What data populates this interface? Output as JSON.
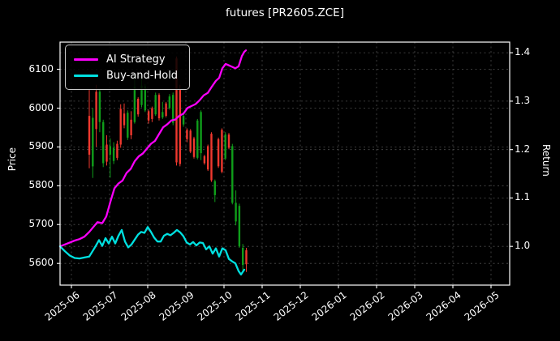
{
  "title": "futures [PR2605.ZCE]",
  "legend": {
    "items": [
      {
        "label": "AI Strategy",
        "color": "#fb00fb"
      },
      {
        "label": "Buy-and-Hold",
        "color": "#00e0e0"
      }
    ]
  },
  "axes": {
    "x": {
      "tick_labels": [
        "2025-06",
        "2025-07",
        "2025-08",
        "2025-09",
        "2025-10",
        "2025-11",
        "2025-12",
        "2026-01",
        "2026-02",
        "2026-03",
        "2026-04",
        "2026-05"
      ],
      "range_months": [
        -0.298,
        11.489
      ]
    },
    "left": {
      "label": "Price",
      "ticks": [
        5600,
        5700,
        5800,
        5900,
        6000,
        6100
      ],
      "range": [
        5544,
        6170
      ]
    },
    "right": {
      "label": "Return",
      "ticks": [
        "1.0",
        "1.1",
        "1.2",
        "1.3",
        "1.4"
      ],
      "range": [
        0.92,
        1.422
      ]
    }
  },
  "colors": {
    "background": "#000000",
    "text": "#ffffff",
    "grid": "#4d4d4d",
    "spine": "#ffffff",
    "candle_up": "#ef382e",
    "candle_down": "#0f9e1a",
    "ai_strategy": "#fb00fb",
    "buy_and_hold": "#00e0e0"
  },
  "chart_data": {
    "type": "candlestick+line",
    "x_unit": "months since 2025-06-01",
    "candles": [
      [
        0.468,
        5880,
        6050,
        5845,
        5980
      ],
      [
        0.56,
        5975,
        6000,
        5820,
        5850
      ],
      [
        0.651,
        5946,
        6060,
        5900,
        6042
      ],
      [
        0.743,
        6042,
        6050,
        5938,
        5964
      ],
      [
        0.834,
        5964,
        5970,
        5848,
        5858
      ],
      [
        0.926,
        5862,
        5930,
        5852,
        5906
      ],
      [
        1.017,
        5902,
        5922,
        5821,
        5880
      ],
      [
        1.109,
        5898,
        5912,
        5856,
        5864
      ],
      [
        1.2,
        5872,
        5916,
        5866,
        5908
      ],
      [
        1.291,
        5906,
        6010,
        5898,
        5998
      ],
      [
        1.383,
        5956,
        6012,
        5948,
        5986
      ],
      [
        1.474,
        5988,
        5994,
        5918,
        5924
      ],
      [
        1.566,
        5930,
        5992,
        5920,
        5970
      ],
      [
        1.657,
        6055,
        6090,
        5960,
        5964
      ],
      [
        1.749,
        5984,
        6028,
        5978,
        6024
      ],
      [
        1.84,
        6058,
        6085,
        6002,
        6008
      ],
      [
        1.932,
        6056,
        6062,
        5990,
        5994
      ],
      [
        2.023,
        5968,
        5996,
        5960,
        5992
      ],
      [
        2.115,
        5972,
        6004,
        5964,
        6000
      ],
      [
        2.206,
        6034,
        6040,
        5980,
        5984
      ],
      [
        2.298,
        5974,
        6038,
        5968,
        6034
      ],
      [
        2.389,
        5990,
        6016,
        5972,
        5976
      ],
      [
        2.481,
        5980,
        6016,
        5976,
        6012
      ],
      [
        2.572,
        6030,
        6036,
        5996,
        6000
      ],
      [
        2.664,
        6034,
        6040,
        5956,
        5962
      ],
      [
        2.755,
        5860,
        6133,
        5852,
        6128
      ],
      [
        2.847,
        5856,
        6060,
        5850,
        6048
      ],
      [
        2.938,
        5980,
        5990,
        5952,
        5958
      ],
      [
        3.03,
        5920,
        5948,
        5912,
        5944
      ],
      [
        3.121,
        5888,
        5946,
        5884,
        5942
      ],
      [
        3.213,
        5874,
        5926,
        5870,
        5922
      ],
      [
        3.304,
        5968,
        5972,
        5868,
        5872
      ],
      [
        3.396,
        5990,
        5994,
        5866,
        5884
      ],
      [
        3.487,
        5858,
        5880,
        5854,
        5876
      ],
      [
        3.579,
        5842,
        5906,
        5838,
        5902
      ],
      [
        3.67,
        5814,
        5938,
        5810,
        5934
      ],
      [
        3.762,
        5812,
        5816,
        5758,
        5776
      ],
      [
        3.853,
        5850,
        5924,
        5846,
        5920
      ],
      [
        3.945,
        5836,
        5948,
        5832,
        5944
      ],
      [
        4.036,
        5932,
        5938,
        5866,
        5870
      ],
      [
        4.128,
        5898,
        5936,
        5894,
        5932
      ],
      [
        4.219,
        5902,
        5908,
        5752,
        5756
      ],
      [
        4.311,
        5756,
        5788,
        5698,
        5708
      ],
      [
        4.402,
        5748,
        5754,
        5640,
        5644
      ],
      [
        4.494,
        5640,
        5650,
        5582,
        5596
      ],
      [
        4.585,
        5598,
        5640,
        5578,
        5634
      ]
    ],
    "series": [
      {
        "name": "AI Strategy",
        "axis": "right",
        "points": [
          [
            -0.298,
            1.0
          ],
          [
            -0.17,
            1.004
          ],
          [
            -0.043,
            1.008
          ],
          [
            0.085,
            1.012
          ],
          [
            0.213,
            1.015
          ],
          [
            0.34,
            1.02
          ],
          [
            0.468,
            1.03
          ],
          [
            0.574,
            1.04
          ],
          [
            0.681,
            1.05
          ],
          [
            0.809,
            1.048
          ],
          [
            0.915,
            1.062
          ],
          [
            1.021,
            1.092
          ],
          [
            1.128,
            1.12
          ],
          [
            1.234,
            1.13
          ],
          [
            1.34,
            1.136
          ],
          [
            1.447,
            1.152
          ],
          [
            1.553,
            1.16
          ],
          [
            1.66,
            1.176
          ],
          [
            1.766,
            1.186
          ],
          [
            1.872,
            1.192
          ],
          [
            1.979,
            1.202
          ],
          [
            2.085,
            1.212
          ],
          [
            2.191,
            1.218
          ],
          [
            2.298,
            1.232
          ],
          [
            2.404,
            1.246
          ],
          [
            2.511,
            1.252
          ],
          [
            2.617,
            1.26
          ],
          [
            2.723,
            1.262
          ],
          [
            2.83,
            1.27
          ],
          [
            2.936,
            1.274
          ],
          [
            3.043,
            1.286
          ],
          [
            3.149,
            1.29
          ],
          [
            3.255,
            1.294
          ],
          [
            3.362,
            1.302
          ],
          [
            3.468,
            1.312
          ],
          [
            3.574,
            1.317
          ],
          [
            3.681,
            1.33
          ],
          [
            3.787,
            1.342
          ],
          [
            3.872,
            1.348
          ],
          [
            3.957,
            1.368
          ],
          [
            4.043,
            1.377
          ],
          [
            4.128,
            1.374
          ],
          [
            4.213,
            1.371
          ],
          [
            4.298,
            1.368
          ],
          [
            4.383,
            1.372
          ],
          [
            4.468,
            1.393
          ],
          [
            4.532,
            1.402
          ],
          [
            4.574,
            1.405
          ]
        ]
      },
      {
        "name": "Buy-and-Hold",
        "axis": "right",
        "points": [
          [
            -0.298,
            1.0
          ],
          [
            -0.17,
            0.99
          ],
          [
            -0.043,
            0.981
          ],
          [
            0.085,
            0.976
          ],
          [
            0.213,
            0.975
          ],
          [
            0.34,
            0.977
          ],
          [
            0.468,
            0.979
          ],
          [
            0.553,
            0.99
          ],
          [
            0.638,
            1.001
          ],
          [
            0.723,
            1.013
          ],
          [
            0.809,
            1.001
          ],
          [
            0.894,
            1.017
          ],
          [
            0.979,
            1.006
          ],
          [
            1.064,
            1.02
          ],
          [
            1.149,
            1.006
          ],
          [
            1.234,
            1.022
          ],
          [
            1.319,
            1.034
          ],
          [
            1.404,
            1.01
          ],
          [
            1.489,
            0.998
          ],
          [
            1.574,
            1.004
          ],
          [
            1.66,
            1.014
          ],
          [
            1.745,
            1.024
          ],
          [
            1.83,
            1.03
          ],
          [
            1.915,
            1.028
          ],
          [
            2.0,
            1.04
          ],
          [
            2.085,
            1.03
          ],
          [
            2.17,
            1.018
          ],
          [
            2.255,
            1.01
          ],
          [
            2.34,
            1.01
          ],
          [
            2.426,
            1.022
          ],
          [
            2.511,
            1.026
          ],
          [
            2.596,
            1.023
          ],
          [
            2.681,
            1.028
          ],
          [
            2.766,
            1.034
          ],
          [
            2.851,
            1.029
          ],
          [
            2.936,
            1.021
          ],
          [
            3.021,
            1.008
          ],
          [
            3.106,
            1.004
          ],
          [
            3.191,
            1.009
          ],
          [
            3.277,
            1.002
          ],
          [
            3.362,
            1.008
          ],
          [
            3.447,
            1.007
          ],
          [
            3.532,
            0.994
          ],
          [
            3.617,
            1.0
          ],
          [
            3.702,
            0.985
          ],
          [
            3.787,
            0.996
          ],
          [
            3.872,
            0.979
          ],
          [
            3.957,
            0.996
          ],
          [
            4.043,
            0.992
          ],
          [
            4.128,
            0.974
          ],
          [
            4.213,
            0.969
          ],
          [
            4.298,
            0.965
          ],
          [
            4.383,
            0.949
          ],
          [
            4.447,
            0.942
          ],
          [
            4.532,
            0.952
          ]
        ]
      }
    ]
  }
}
